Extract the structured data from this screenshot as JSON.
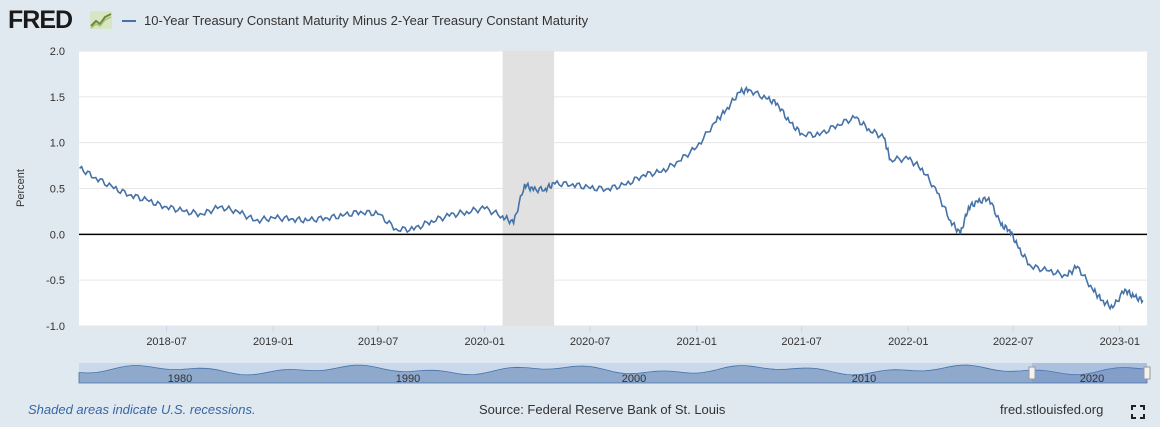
{
  "header": {
    "logo_text": "FRED",
    "legend_label": "10-Year Treasury Constant Maturity Minus 2-Year Treasury Constant Maturity",
    "series_color": "#4572a7"
  },
  "footer": {
    "recession_note": "Shaded areas indicate U.S. recessions.",
    "source": "Source: Federal Reserve Bank of St. Louis",
    "site": "fred.stlouisfed.org"
  },
  "navigator": {
    "tick_labels": [
      "1980",
      "1990",
      "2000",
      "2010",
      "2020"
    ]
  },
  "chart_data": {
    "type": "line",
    "title": "10-Year Treasury Constant Maturity Minus 2-Year Treasury Constant Maturity",
    "xlabel": "",
    "ylabel": "Percent",
    "ylim": [
      -1.0,
      2.0
    ],
    "yticks": [
      "2.0",
      "1.5",
      "1.0",
      "0.5",
      "0.0",
      "-0.5",
      "-1.0"
    ],
    "xticks": [
      "2018-07",
      "2019-01",
      "2019-07",
      "2020-01",
      "2020-07",
      "2021-01",
      "2021-07",
      "2022-01",
      "2022-07",
      "2023-01"
    ],
    "xlim": [
      "2018-01-31",
      "2023-02-17"
    ],
    "grid": true,
    "legend": "top-left",
    "recession": {
      "start": "2020-02-01",
      "end": "2020-04-30"
    },
    "series": [
      {
        "name": "10-Year Treasury Constant Maturity Minus 2-Year Treasury Constant Maturity",
        "x": [
          "2018-02-01",
          "2018-03-01",
          "2018-04-01",
          "2018-05-01",
          "2018-06-01",
          "2018-07-01",
          "2018-08-01",
          "2018-09-01",
          "2018-10-01",
          "2018-11-01",
          "2018-12-01",
          "2019-01-01",
          "2019-02-01",
          "2019-03-01",
          "2019-04-01",
          "2019-05-01",
          "2019-06-01",
          "2019-07-01",
          "2019-08-01",
          "2019-09-01",
          "2019-10-01",
          "2019-11-01",
          "2019-12-01",
          "2020-01-01",
          "2020-02-01",
          "2020-02-20",
          "2020-03-10",
          "2020-03-25",
          "2020-04-15",
          "2020-05-01",
          "2020-06-01",
          "2020-07-01",
          "2020-08-01",
          "2020-09-01",
          "2020-10-01",
          "2020-11-01",
          "2020-12-01",
          "2021-01-01",
          "2021-02-01",
          "2021-02-20",
          "2021-03-15",
          "2021-04-01",
          "2021-05-01",
          "2021-05-20",
          "2021-06-10",
          "2021-07-01",
          "2021-08-01",
          "2021-09-01",
          "2021-10-01",
          "2021-10-25",
          "2021-11-20",
          "2021-12-01",
          "2022-01-01",
          "2022-01-25",
          "2022-02-20",
          "2022-03-15",
          "2022-04-01",
          "2022-04-15",
          "2022-05-01",
          "2022-05-20",
          "2022-06-10",
          "2022-06-25",
          "2022-07-10",
          "2022-08-01",
          "2022-09-01",
          "2022-10-01",
          "2022-10-20",
          "2022-11-15",
          "2022-12-01",
          "2022-12-20",
          "2023-01-10",
          "2023-01-25",
          "2023-02-10"
        ],
        "y": [
          0.72,
          0.62,
          0.5,
          0.43,
          0.36,
          0.3,
          0.25,
          0.22,
          0.3,
          0.25,
          0.15,
          0.18,
          0.17,
          0.15,
          0.18,
          0.2,
          0.25,
          0.22,
          0.06,
          0.05,
          0.15,
          0.2,
          0.25,
          0.28,
          0.2,
          0.12,
          0.55,
          0.48,
          0.5,
          0.55,
          0.55,
          0.5,
          0.5,
          0.54,
          0.65,
          0.68,
          0.8,
          0.95,
          1.22,
          1.35,
          1.55,
          1.58,
          1.48,
          1.43,
          1.22,
          1.1,
          1.08,
          1.2,
          1.27,
          1.15,
          1.05,
          0.82,
          0.82,
          0.72,
          0.45,
          0.15,
          0.0,
          0.3,
          0.35,
          0.4,
          0.1,
          0.05,
          -0.15,
          -0.35,
          -0.4,
          -0.45,
          -0.35,
          -0.6,
          -0.72,
          -0.8,
          -0.6,
          -0.68,
          -0.72
        ]
      }
    ]
  }
}
